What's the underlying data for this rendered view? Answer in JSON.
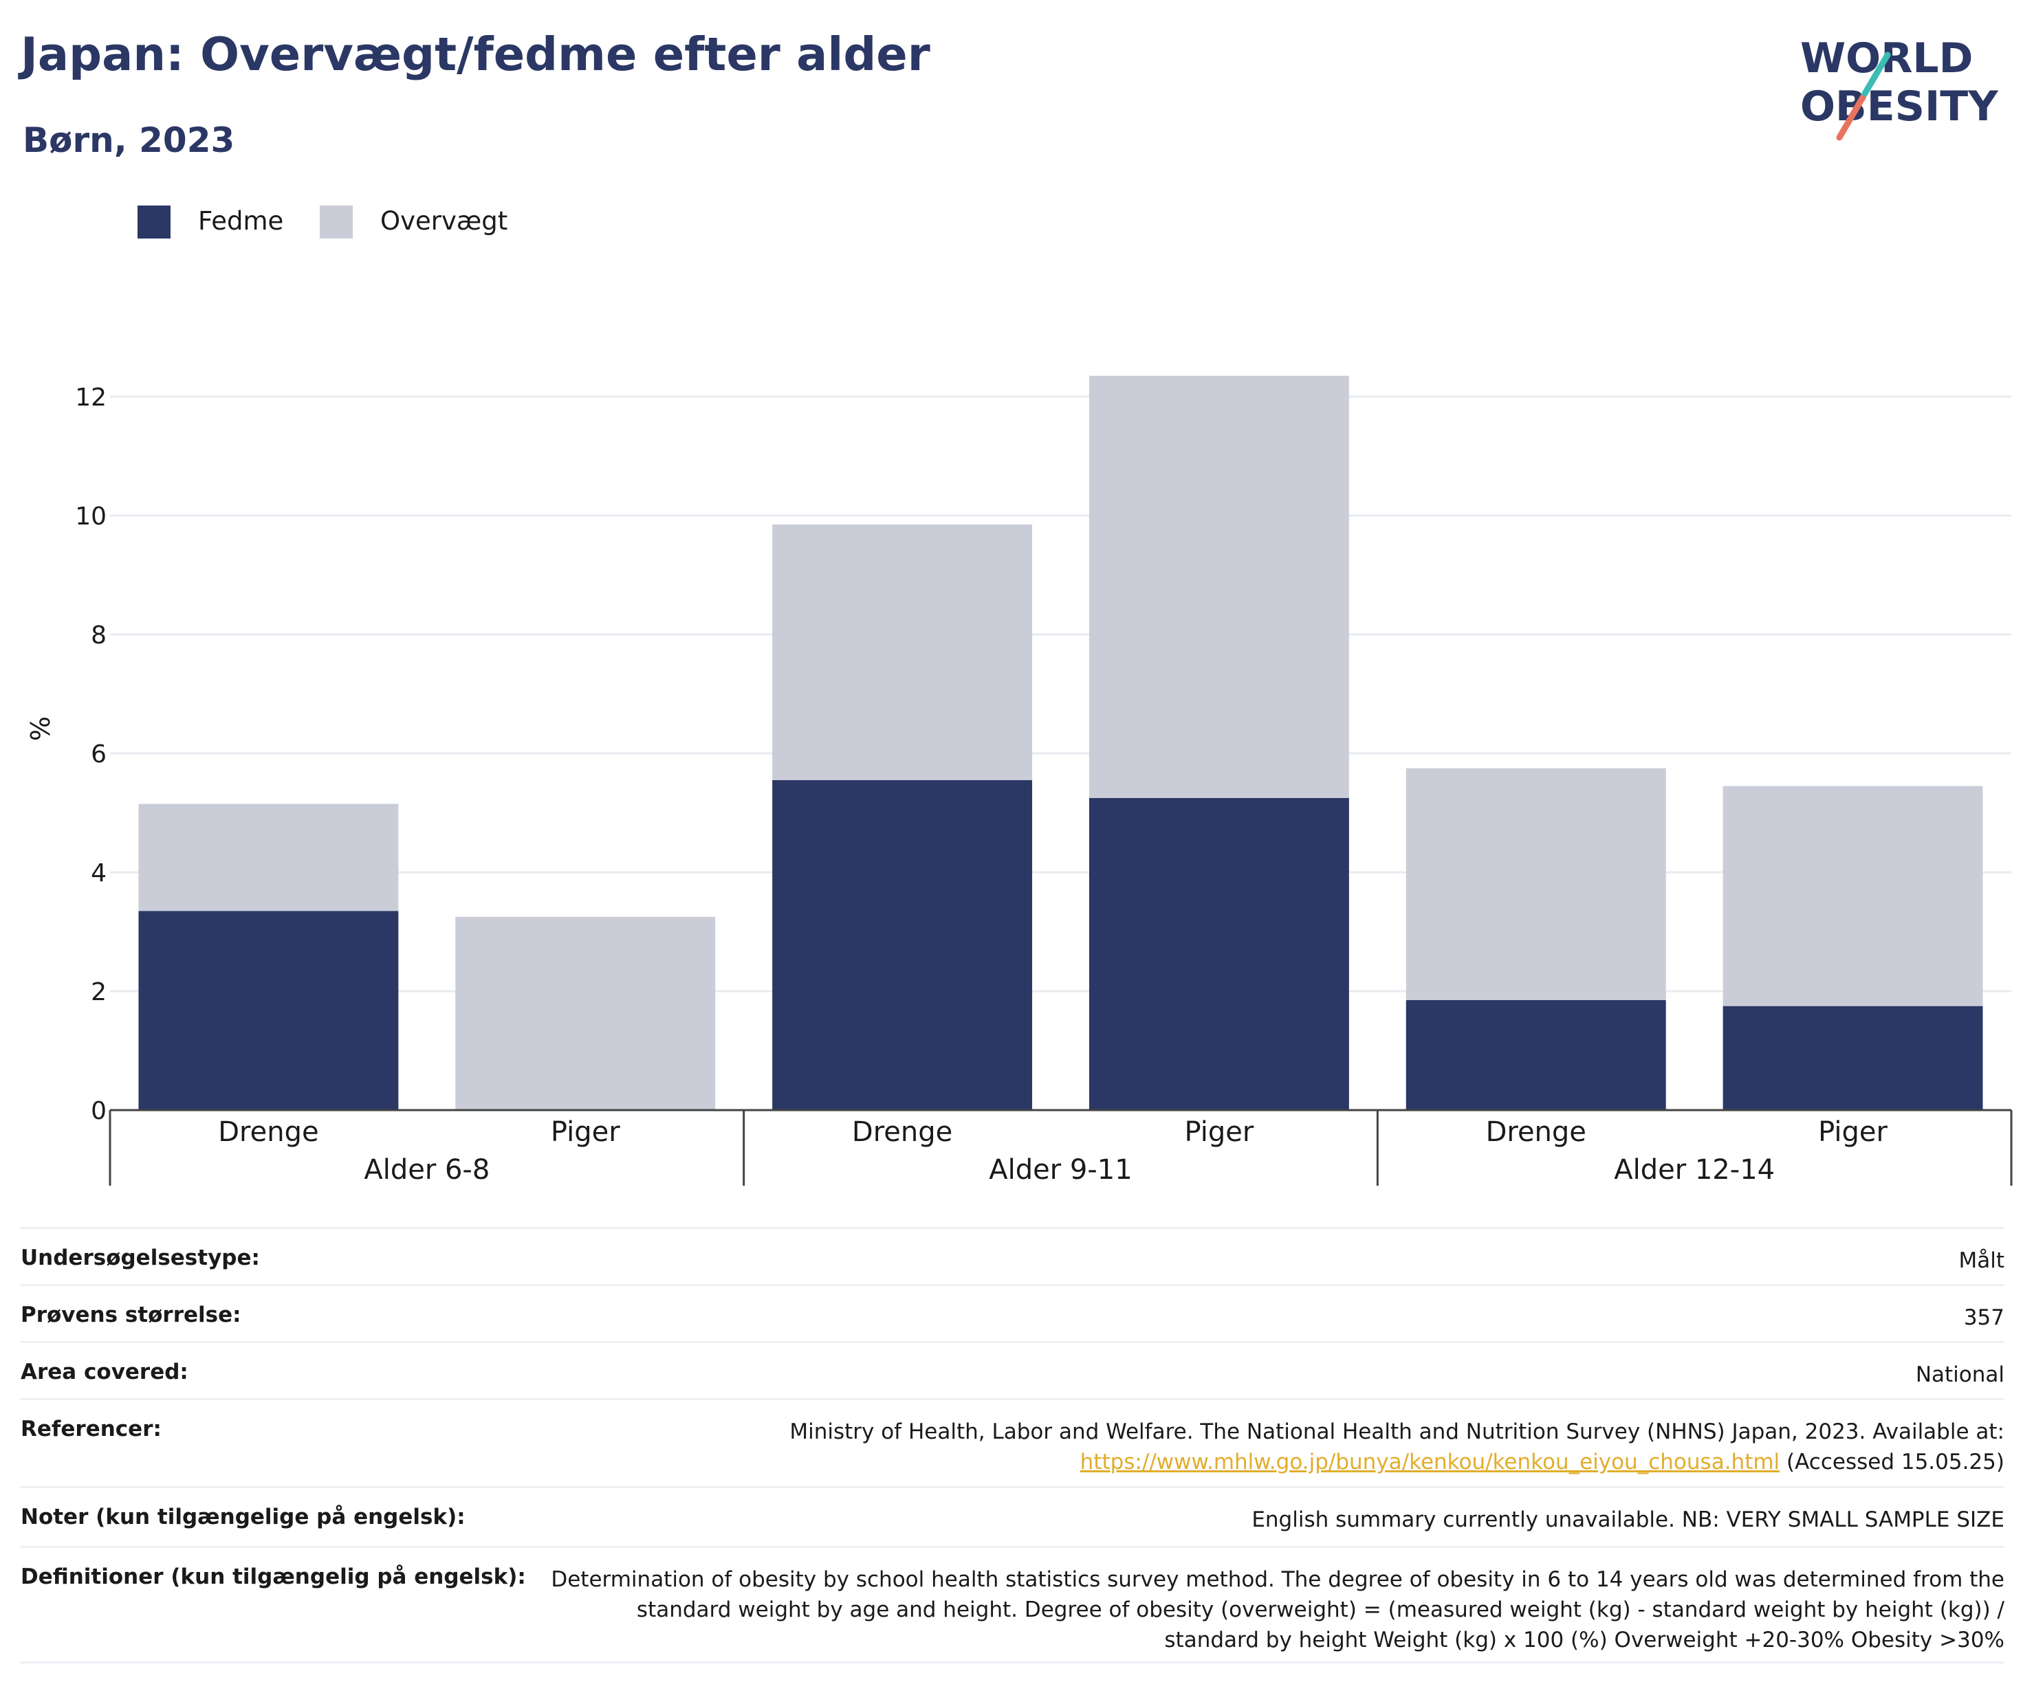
{
  "header": {
    "title": "Japan: Overvægt/fedme efter alder",
    "subtitle": "Børn, 2023"
  },
  "logo": {
    "line1": "WORLD",
    "line2": "OBESITY"
  },
  "colors": {
    "fedme": "#2b3764",
    "overvaegt": "#cacdd8",
    "accent_teal": "#3cbcb4",
    "accent_coral": "#e8735f",
    "link": "#e2ad2c"
  },
  "chart_data": {
    "type": "bar",
    "stacked": true,
    "ylabel": "%",
    "ylim": [
      0,
      13
    ],
    "yticks": [
      0,
      2,
      4,
      6,
      8,
      10,
      12
    ],
    "grid": true,
    "legend_position": "top-left",
    "groups": [
      {
        "label": "Alder 6-8",
        "categories": [
          "Drenge",
          "Piger"
        ]
      },
      {
        "label": "Alder 9-11",
        "categories": [
          "Drenge",
          "Piger"
        ]
      },
      {
        "label": "Alder 12-14",
        "categories": [
          "Drenge",
          "Piger"
        ]
      }
    ],
    "series": [
      {
        "name": "Fedme",
        "values": [
          3.35,
          0,
          5.55,
          5.25,
          1.85,
          1.75
        ]
      },
      {
        "name": "Overvægt",
        "values": [
          1.8,
          3.25,
          4.3,
          7.1,
          3.9,
          3.7
        ]
      }
    ]
  },
  "info": {
    "survey_type": {
      "label": "Undersøgelsestype:",
      "value": "Målt"
    },
    "sample_size": {
      "label": "Prøvens størrelse:",
      "value": "357"
    },
    "area": {
      "label": "Area covered:",
      "value": "National"
    },
    "references": {
      "label": "Referencer:",
      "text": "Ministry of Health, Labor and Welfare. The National Health and Nutrition Survey (NHNS) Japan, 2023. Available at:",
      "link": "https://www.mhlw.go.jp/bunya/kenkou/kenkou_eiyou_chousa.html",
      "accessed": "(Accessed 15.05.25)"
    },
    "notes": {
      "label": "Noter (kun tilgængelige på engelsk):",
      "value": "English summary currently unavailable. NB: VERY SMALL SAMPLE SIZE"
    },
    "definitions": {
      "label": "Definitioner (kun tilgængelig på engelsk):",
      "value": "Determination of obesity by school health statistics survey method. The degree of obesity in 6 to 14 years old was determined from the standard weight by age and height. Degree of obesity (overweight) = (measured weight (kg) - standard weight by height (kg)) / standard by height Weight (kg) x 100 (%) Overweight +20-30% Obesity >30%"
    }
  }
}
